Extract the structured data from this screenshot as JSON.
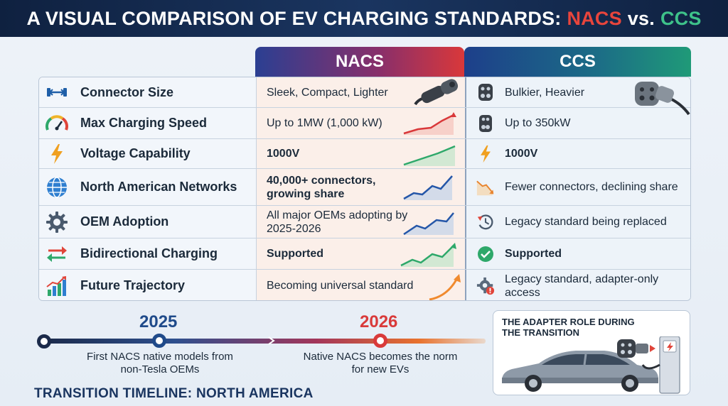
{
  "title": {
    "prefix": "A VISUAL COMPARISON OF EV CHARGING STANDARDS:",
    "nacs": "NACS",
    "vs": "vs.",
    "ccs": "CCS"
  },
  "columns": {
    "nacs": "NACS",
    "ccs": "CCS"
  },
  "colors": {
    "nacs": "#e8453c",
    "ccs": "#3ec28a",
    "navy": "#1a3560"
  },
  "rows": [
    {
      "label": "Connector Size",
      "icon": "connector-size-icon",
      "nacs": "Sleek, Compact, Lighter",
      "ccs": "Bulkier, Heavier"
    },
    {
      "label": "Max Charging Speed",
      "icon": "speedometer-icon",
      "nacs": "Up to 1MW (1,000 kW)",
      "ccs": "Up to 350kW"
    },
    {
      "label": "Voltage Capability",
      "icon": "lightning-icon",
      "nacs": "1000V",
      "ccs": "1000V"
    },
    {
      "label": "North American Networks",
      "icon": "globe-icon",
      "nacs": "40,000+ connectors, growing share",
      "ccs": "Fewer connectors, declining share"
    },
    {
      "label": "OEM Adoption",
      "icon": "gear-icon",
      "nacs": "All major OEMs adopting by 2025-2026",
      "ccs": "Legacy standard being replaced"
    },
    {
      "label": "Bidirectional Charging",
      "icon": "bidirectional-arrows-icon",
      "nacs": "Supported",
      "ccs": "Supported"
    },
    {
      "label": "Future Trajectory",
      "icon": "growth-chart-icon",
      "nacs": "Becoming universal standard",
      "ccs": "Legacy standard, adapter-only access"
    }
  ],
  "timeline": {
    "title": "TRANSITION TIMELINE: NORTH AMERICA",
    "milestones": [
      {
        "year": "2025",
        "caption": "First NACS native models from non-Tesla OEMs"
      },
      {
        "year": "2026",
        "caption": "Native NACS becomes the norm for new EVs"
      }
    ]
  },
  "adapter": {
    "title": "THE ADAPTER ROLE DURING THE TRANSITION"
  }
}
